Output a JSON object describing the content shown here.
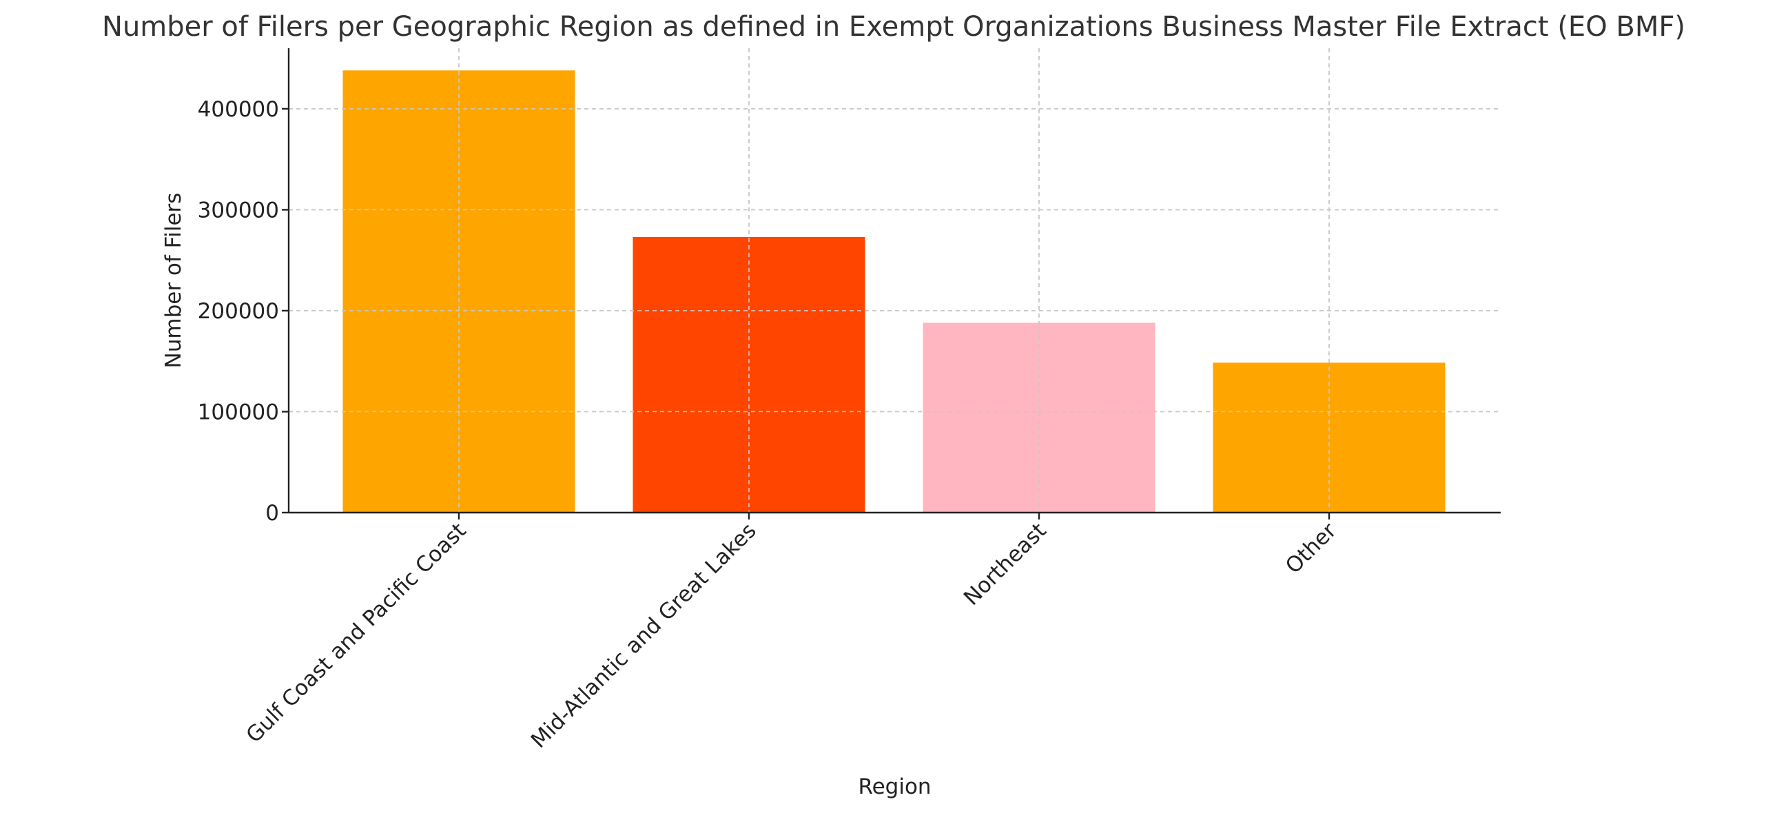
{
  "chart_data": {
    "type": "bar",
    "title": "Number of Filers per Geographic Region as defined in Exempt Organizations Business Master File Extract (EO BMF)",
    "xlabel": "Region",
    "ylabel": "Number of Filers",
    "categories": [
      "Gulf Coast and Pacific Coast",
      "Mid-Atlantic and Great Lakes",
      "Northeast",
      "Other"
    ],
    "values": [
      438000,
      273000,
      188000,
      148500
    ],
    "colors": [
      "#FFA500",
      "#FF4500",
      "#FFB6C1",
      "#FFA500"
    ],
    "ylim": [
      0,
      460000
    ],
    "yticks": [
      0,
      100000,
      200000,
      300000,
      400000
    ],
    "ytick_labels": [
      "0",
      "100000",
      "200000",
      "300000",
      "400000"
    ],
    "grid": true,
    "grid_style": "dashed",
    "xtick_rotation_deg": 45
  }
}
